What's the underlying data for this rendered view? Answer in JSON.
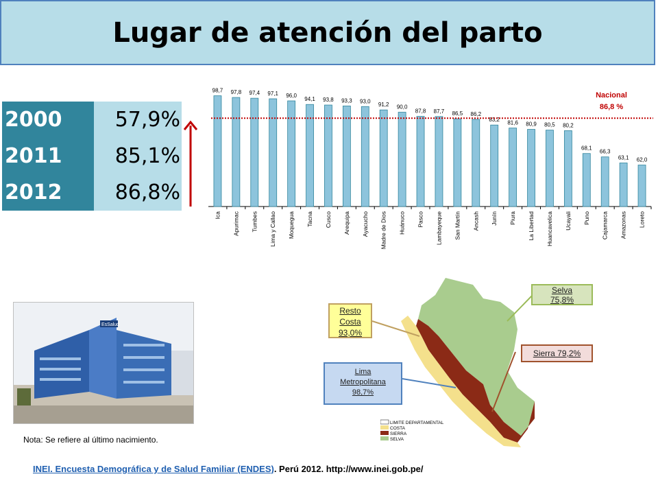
{
  "title": "Lugar de atención del parto",
  "years": [
    {
      "year": "2000",
      "pct": "57,9%"
    },
    {
      "year": "2011",
      "pct": "85,1%"
    },
    {
      "year": "2012",
      "pct": "86,8%"
    }
  ],
  "colors": {
    "bar": "#8dc4dc",
    "bar_stroke": "#31859c",
    "nacional": "#c00000",
    "year_bg": "#31859c",
    "pct_bg": "#b7dde8"
  },
  "chart_data": {
    "type": "bar",
    "categories": [
      "Ica",
      "Apurimac",
      "Tumbes",
      "Lima y Callao",
      "Moquegua",
      "Tacna",
      "Cusco",
      "Arequipa",
      "Ayacucho",
      "Madre de Dios",
      "Huánuco",
      "Pasco",
      "Lambayeque",
      "San Martín",
      "Ancash",
      "Junín",
      "Piura",
      "La Libertad",
      "Huancavelica",
      "Ucayali",
      "Puno",
      "Cajamarca",
      "Amazonas",
      "Loreto"
    ],
    "values": [
      98.7,
      97.8,
      97.4,
      97.1,
      96.0,
      94.1,
      93.8,
      93.3,
      93.0,
      91.2,
      90.0,
      87.8,
      87.7,
      86.5,
      86.2,
      83.2,
      81.6,
      80.9,
      80.5,
      80.2,
      68.1,
      66.3,
      63.1,
      62.0
    ],
    "value_labels": [
      "98,7",
      "97,8",
      "97,4",
      "97,1",
      "96,0",
      "94,1",
      "93,8",
      "93,3",
      "93,0",
      "91,2",
      "90,0",
      "87,8",
      "87,7",
      "86,5",
      "86,2",
      "83,2",
      "81,6",
      "80,9",
      "80,5",
      "80,2",
      "68,1",
      "66,3",
      "63,1",
      "62,0"
    ],
    "reference_line": {
      "value": 86.8,
      "label_line1": "Nacional",
      "label_line2": "86,8 %"
    },
    "ylim": [
      40,
      100
    ],
    "grid": false
  },
  "map": {
    "resto_costa": {
      "line1": "Resto",
      "line2": "Costa",
      "line3": "93,0%"
    },
    "lima": {
      "line1": "Lima",
      "line2": "Metropolitana",
      "line3": "98,7%"
    },
    "selva": {
      "line1": "Selva",
      "line2": "75,8%"
    },
    "sierra": {
      "text": "Sierra 79,2%"
    },
    "legend": {
      "title": "LIMITE DEPARTAMENTAL",
      "costa": "COSTA",
      "sierra": "SIERRA",
      "selva": "SELVA"
    }
  },
  "photo": {
    "sign": "EsSalud"
  },
  "nota": "Nota:  Se refiere al último nacimiento.",
  "footer": {
    "link": "INEI. Encuesta Demográfica y de Salud Familiar (ENDES)",
    "rest": ". Perú 2012. http://www.inei.gob.pe/"
  }
}
